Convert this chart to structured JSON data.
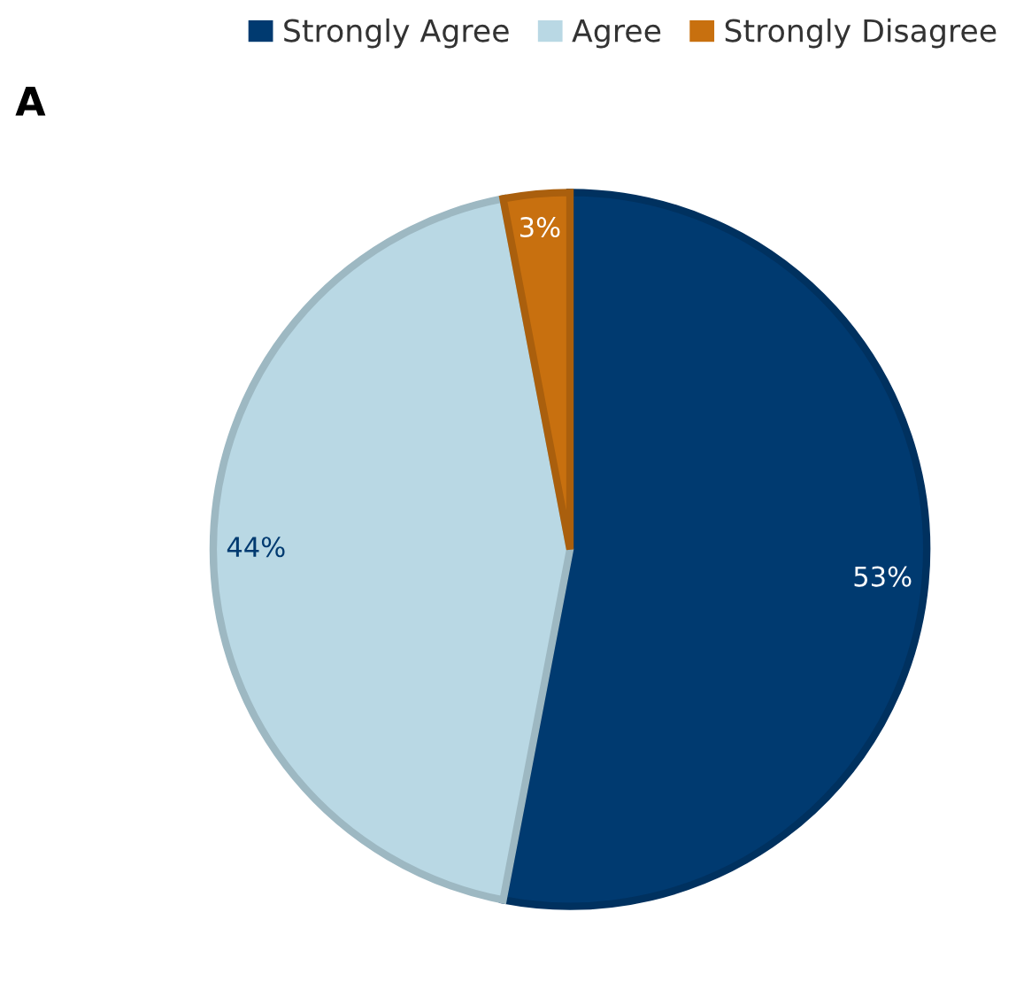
{
  "chart_data": {
    "type": "pie",
    "categories": [
      "Strongly Agree",
      "Agree",
      "Strongly Disagree"
    ],
    "values": [
      53,
      44,
      3
    ],
    "colors": [
      "#003a70",
      "#b9d8e4",
      "#c8700f"
    ],
    "value_labels": [
      "53%",
      "44%",
      "3%"
    ],
    "annotations": [
      "A"
    ],
    "legend": "top right"
  }
}
